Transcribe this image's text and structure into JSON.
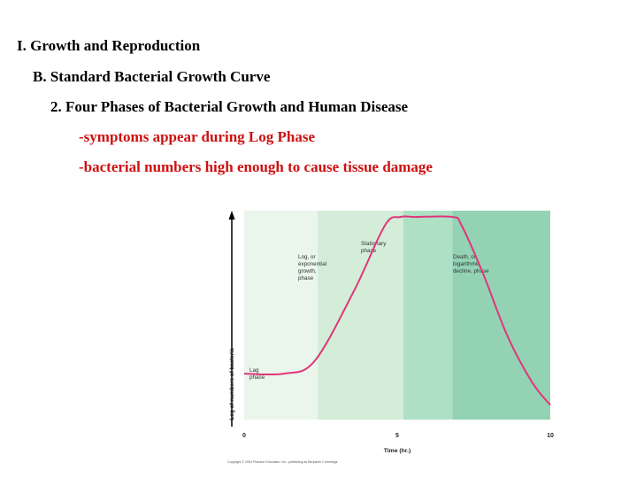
{
  "slide": {
    "heading1": "I. Growth and Reproduction",
    "heading2": "B. Standard Bacterial Growth Curve",
    "heading3": "2. Four Phases of Bacterial Growth and Human Disease",
    "bullet1": "-symptoms appear during Log Phase",
    "bullet2": "-bacterial numbers high enough to cause tissue damage"
  },
  "colors": {
    "red_text": "#cc1111",
    "curve": "#e0357a",
    "lag_band": "#eaf5ec",
    "log_band": "#d3edd8",
    "stationary_band": "#aee0c6",
    "death_band": "#93d3b4"
  },
  "chart_data": {
    "type": "line",
    "xlabel": "Time (hr.)",
    "ylabel": "Log of numbers of bacteria",
    "x_ticks": [
      "0",
      "5",
      "10"
    ],
    "xlim": [
      0,
      10
    ],
    "phases": [
      {
        "label_lines": [
          "Lag",
          "phase"
        ],
        "start": 0,
        "end": 2.4
      },
      {
        "label_lines": [
          "Log, or",
          "exponential",
          "growth,",
          "phase"
        ],
        "start": 2.4,
        "end": 5.2
      },
      {
        "label_lines": [
          "Stationary",
          "phase"
        ],
        "start": 5.2,
        "end": 6.8
      },
      {
        "label_lines": [
          "Death, or",
          "logarithmic",
          "decline, phase"
        ],
        "start": 6.8,
        "end": 10
      }
    ],
    "series": [
      {
        "x": [
          0,
          1.3,
          2.3,
          3.6,
          4.6,
          5.1,
          5.6,
          6.8,
          7.1,
          7.8,
          8.6,
          9.4,
          10
        ],
        "y": [
          0.22,
          0.22,
          0.28,
          0.62,
          0.93,
          0.97,
          0.97,
          0.97,
          0.93,
          0.7,
          0.4,
          0.18,
          0.07
        ]
      }
    ],
    "copyright": "Copyright © 2004 Pearson Education, Inc., publishing as Benjamin Cummings."
  }
}
